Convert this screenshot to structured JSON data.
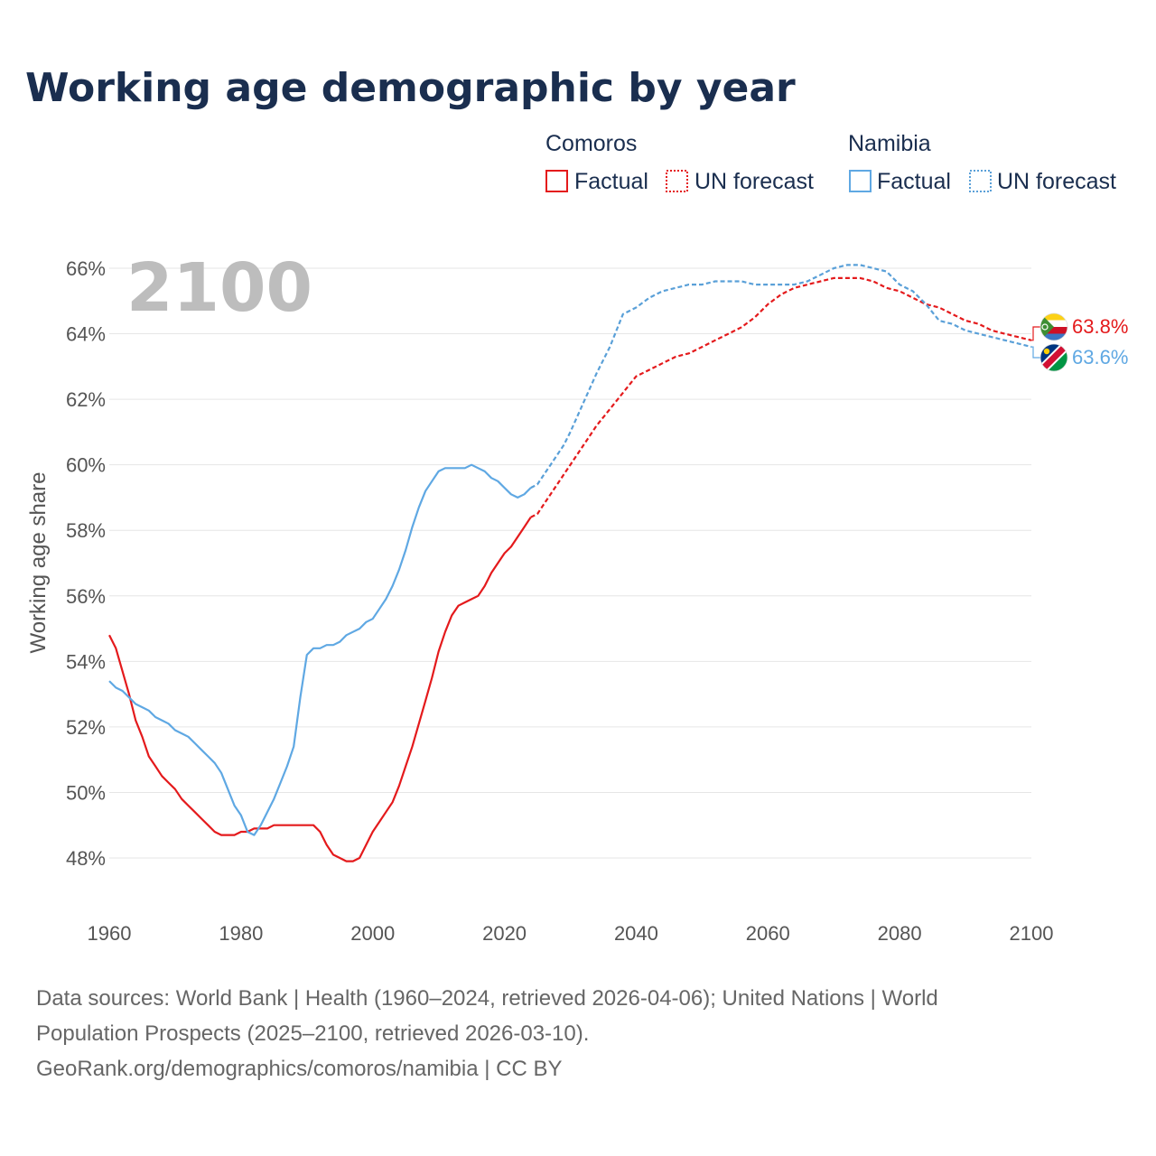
{
  "page": {
    "title": "Working age demographic by year",
    "big_year": "2100",
    "source_line1": "Data sources: World Bank | Health (1960–2024, retrieved 2026-04-06); United Nations | World",
    "source_line2": "Population Prospects (2025–2100, retrieved 2026-03-10).",
    "source_line3": "GeoRank.org/demographics/comoros/namibia | CC BY"
  },
  "legend": {
    "comoros_title": "Comoros",
    "namibia_title": "Namibia",
    "factual_label": "Factual",
    "forecast_label": "UN forecast"
  },
  "colors": {
    "comoros": "#e41a1c",
    "namibia": "#5fa8e3",
    "namibia_forecast": "#5aa0d8"
  },
  "chart_data": {
    "type": "line",
    "title": "Working age demographic by year",
    "xlabel": "",
    "ylabel": "Working age share",
    "xlim": [
      1960,
      2100
    ],
    "ylim": [
      46.5,
      67.5
    ],
    "x_ticks": [
      1960,
      1980,
      2000,
      2020,
      2040,
      2060,
      2080,
      2100
    ],
    "y_ticks": [
      48,
      50,
      52,
      54,
      56,
      58,
      60,
      62,
      64,
      66
    ],
    "y_tick_labels": [
      "48%",
      "50%",
      "52%",
      "54%",
      "56%",
      "58%",
      "60%",
      "62%",
      "64%",
      "66%"
    ],
    "factual_range": [
      1960,
      2024
    ],
    "forecast_range": [
      2025,
      2100
    ],
    "series": [
      {
        "name": "Comoros",
        "end_label": "63.8%",
        "x": [
          1960,
          1961,
          1962,
          1963,
          1964,
          1965,
          1966,
          1967,
          1968,
          1969,
          1970,
          1971,
          1972,
          1973,
          1974,
          1975,
          1976,
          1977,
          1978,
          1979,
          1980,
          1981,
          1982,
          1983,
          1984,
          1985,
          1986,
          1987,
          1988,
          1989,
          1990,
          1991,
          1992,
          1993,
          1994,
          1995,
          1996,
          1997,
          1998,
          1999,
          2000,
          2001,
          2002,
          2003,
          2004,
          2005,
          2006,
          2007,
          2008,
          2009,
          2010,
          2011,
          2012,
          2013,
          2014,
          2015,
          2016,
          2017,
          2018,
          2019,
          2020,
          2021,
          2022,
          2023,
          2024,
          2025,
          2026,
          2027,
          2028,
          2029,
          2030,
          2032,
          2034,
          2036,
          2038,
          2040,
          2042,
          2044,
          2046,
          2048,
          2050,
          2052,
          2054,
          2056,
          2058,
          2060,
          2062,
          2064,
          2066,
          2068,
          2070,
          2072,
          2074,
          2076,
          2078,
          2080,
          2082,
          2084,
          2086,
          2088,
          2090,
          2092,
          2094,
          2096,
          2098,
          2100
        ],
        "y": [
          54.8,
          54.4,
          53.7,
          53.0,
          52.2,
          51.7,
          51.1,
          50.8,
          50.5,
          50.3,
          50.1,
          49.8,
          49.6,
          49.4,
          49.2,
          49.0,
          48.8,
          48.7,
          48.7,
          48.7,
          48.8,
          48.8,
          48.9,
          48.9,
          48.9,
          49.0,
          49.0,
          49.0,
          49.0,
          49.0,
          49.0,
          49.0,
          48.8,
          48.4,
          48.1,
          48.0,
          47.9,
          47.9,
          48.0,
          48.4,
          48.8,
          49.1,
          49.4,
          49.7,
          50.2,
          50.8,
          51.4,
          52.1,
          52.8,
          53.5,
          54.3,
          54.9,
          55.4,
          55.7,
          55.8,
          55.9,
          56.0,
          56.3,
          56.7,
          57.0,
          57.3,
          57.5,
          57.8,
          58.1,
          58.4,
          58.5,
          58.8,
          59.1,
          59.4,
          59.7,
          60.0,
          60.6,
          61.2,
          61.7,
          62.2,
          62.7,
          62.9,
          63.1,
          63.3,
          63.4,
          63.6,
          63.8,
          64.0,
          64.2,
          64.5,
          64.9,
          65.2,
          65.4,
          65.5,
          65.6,
          65.7,
          65.7,
          65.7,
          65.6,
          65.4,
          65.3,
          65.1,
          64.9,
          64.8,
          64.6,
          64.4,
          64.3,
          64.1,
          64.0,
          63.9,
          63.8
        ]
      },
      {
        "name": "Namibia",
        "end_label": "63.6%",
        "x": [
          1960,
          1961,
          1962,
          1963,
          1964,
          1965,
          1966,
          1967,
          1968,
          1969,
          1970,
          1971,
          1972,
          1973,
          1974,
          1975,
          1976,
          1977,
          1978,
          1979,
          1980,
          1981,
          1982,
          1983,
          1984,
          1985,
          1986,
          1987,
          1988,
          1989,
          1990,
          1991,
          1992,
          1993,
          1994,
          1995,
          1996,
          1997,
          1998,
          1999,
          2000,
          2001,
          2002,
          2003,
          2004,
          2005,
          2006,
          2007,
          2008,
          2009,
          2010,
          2011,
          2012,
          2013,
          2014,
          2015,
          2016,
          2017,
          2018,
          2019,
          2020,
          2021,
          2022,
          2023,
          2024,
          2025,
          2026,
          2027,
          2028,
          2029,
          2030,
          2032,
          2034,
          2036,
          2038,
          2040,
          2042,
          2044,
          2046,
          2048,
          2050,
          2052,
          2054,
          2056,
          2058,
          2060,
          2062,
          2064,
          2066,
          2068,
          2070,
          2072,
          2074,
          2076,
          2078,
          2080,
          2082,
          2084,
          2086,
          2088,
          2090,
          2092,
          2094,
          2096,
          2098,
          2100
        ],
        "y": [
          53.4,
          53.2,
          53.1,
          52.9,
          52.7,
          52.6,
          52.5,
          52.3,
          52.2,
          52.1,
          51.9,
          51.8,
          51.7,
          51.5,
          51.3,
          51.1,
          50.9,
          50.6,
          50.1,
          49.6,
          49.3,
          48.8,
          48.7,
          49.0,
          49.4,
          49.8,
          50.3,
          50.8,
          51.4,
          52.9,
          54.2,
          54.4,
          54.4,
          54.5,
          54.5,
          54.6,
          54.8,
          54.9,
          55.0,
          55.2,
          55.3,
          55.6,
          55.9,
          56.3,
          56.8,
          57.4,
          58.1,
          58.7,
          59.2,
          59.5,
          59.8,
          59.9,
          59.9,
          59.9,
          59.9,
          60.0,
          59.9,
          59.8,
          59.6,
          59.5,
          59.3,
          59.1,
          59.0,
          59.1,
          59.3,
          59.4,
          59.7,
          60.0,
          60.3,
          60.6,
          61.0,
          61.9,
          62.8,
          63.6,
          64.6,
          64.8,
          65.1,
          65.3,
          65.4,
          65.5,
          65.5,
          65.6,
          65.6,
          65.6,
          65.5,
          65.5,
          65.5,
          65.5,
          65.6,
          65.8,
          66.0,
          66.1,
          66.1,
          66.0,
          65.9,
          65.5,
          65.3,
          64.9,
          64.4,
          64.3,
          64.1,
          64.0,
          63.9,
          63.8,
          63.7,
          63.6
        ]
      }
    ]
  }
}
